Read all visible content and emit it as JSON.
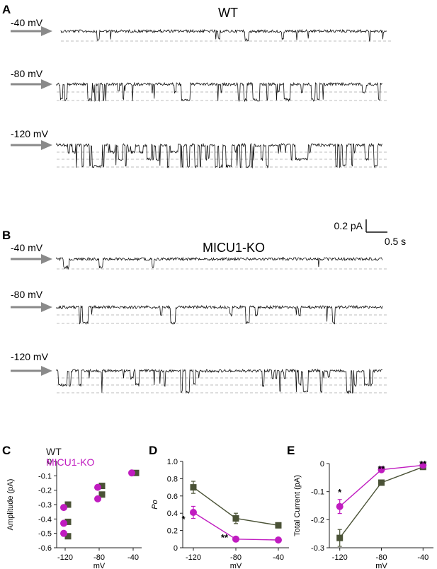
{
  "colors": {
    "wt": "#4a5236",
    "ko": "#c01cc0",
    "trace": "#111111",
    "arrow": "#8a8a8a",
    "dash": "#bdbdbd",
    "axis": "#222222"
  },
  "panel_a": {
    "letter": "A",
    "title": "WT",
    "traces": [
      {
        "label": "-40 mV",
        "levels": 1,
        "open_prob": 0.05,
        "amp": 12
      },
      {
        "label": "-80 mV",
        "levels": 2,
        "open_prob": 0.35,
        "amp": 22
      },
      {
        "label": "-120 mV",
        "levels": 3,
        "open_prob": 0.55,
        "amp": 30
      }
    ]
  },
  "scale_bar": {
    "amplitude": "0.2 pA",
    "time": "0.5 s"
  },
  "panel_b": {
    "letter": "B",
    "title": "MICU1-KO",
    "traces": [
      {
        "label": "-40 mV",
        "levels": 1,
        "open_prob": 0.03,
        "amp": 12
      },
      {
        "label": "-80 mV",
        "levels": 2,
        "open_prob": 0.08,
        "amp": 22
      },
      {
        "label": "-120 mV",
        "levels": 3,
        "open_prob": 0.25,
        "amp": 30
      }
    ]
  },
  "chart_data": [
    {
      "panel": "C",
      "type": "scatter",
      "xlabel": "mV",
      "ylabel": "Amplitude (pA)",
      "xlim": [
        -130,
        -30
      ],
      "ylim": [
        -0.6,
        0
      ],
      "xticks": [
        "-120",
        "-80",
        "-40"
      ],
      "yticks": [
        "0",
        "-0.1",
        "-0.2",
        "-0.3",
        "-0.4",
        "-0.5",
        "-0.6"
      ],
      "legend": [
        "WT",
        "MICU1-KO"
      ],
      "series": [
        {
          "name": "WT",
          "marker": "square",
          "points": [
            [
              -120,
              -0.3
            ],
            [
              -120,
              -0.42
            ],
            [
              -120,
              -0.52
            ],
            [
              -80,
              -0.17
            ],
            [
              -80,
              -0.23
            ],
            [
              -40,
              -0.08
            ]
          ]
        },
        {
          "name": "MICU1-KO",
          "marker": "circle",
          "points": [
            [
              -120,
              -0.32
            ],
            [
              -120,
              -0.43
            ],
            [
              -120,
              -0.5
            ],
            [
              -80,
              -0.18
            ],
            [
              -80,
              -0.26
            ],
            [
              -40,
              -0.08
            ]
          ]
        }
      ]
    },
    {
      "panel": "D",
      "type": "line",
      "xlabel": "mV",
      "ylabel": "Po",
      "xlim": [
        -130,
        -30
      ],
      "ylim": [
        0,
        1.0
      ],
      "xticks": [
        "-120",
        "-80",
        "-40"
      ],
      "yticks": [
        "0",
        "0.2",
        "0.4",
        "0.6",
        "0.8",
        "1.0"
      ],
      "x": [
        -120,
        -80,
        -40
      ],
      "series": [
        {
          "name": "WT",
          "marker": "square",
          "values": [
            0.7,
            0.34,
            0.26
          ],
          "errors": [
            0.07,
            0.06,
            0.03
          ]
        },
        {
          "name": "MICU1-KO",
          "marker": "circle",
          "values": [
            0.41,
            0.1,
            0.09
          ],
          "errors": [
            0.07,
            0.02,
            0.02
          ]
        }
      ],
      "annotations": [
        {
          "x": -120,
          "text": "*"
        },
        {
          "x": -80,
          "text": "**"
        }
      ]
    },
    {
      "panel": "E",
      "type": "line",
      "xlabel": "mV",
      "ylabel": "Total Current (pA)",
      "xlim": [
        -130,
        -30
      ],
      "ylim": [
        -0.3,
        0
      ],
      "xticks": [
        "-120",
        "-80",
        "-40"
      ],
      "yticks": [
        "0",
        "-0.1",
        "-0.2",
        "-0.3"
      ],
      "x": [
        -120,
        -80,
        -40
      ],
      "series": [
        {
          "name": "WT",
          "marker": "square",
          "values": [
            -0.265,
            -0.068,
            -0.012
          ],
          "errors": [
            0.03,
            0.006,
            0.003
          ]
        },
        {
          "name": "MICU1-KO",
          "marker": "circle",
          "values": [
            -0.153,
            -0.022,
            -0.006
          ],
          "errors": [
            0.025,
            0.004,
            0.002
          ]
        }
      ],
      "annotations": [
        {
          "x": -120,
          "text": "*"
        },
        {
          "x": -80,
          "text": "**"
        },
        {
          "x": -40,
          "text": "**"
        }
      ]
    }
  ]
}
